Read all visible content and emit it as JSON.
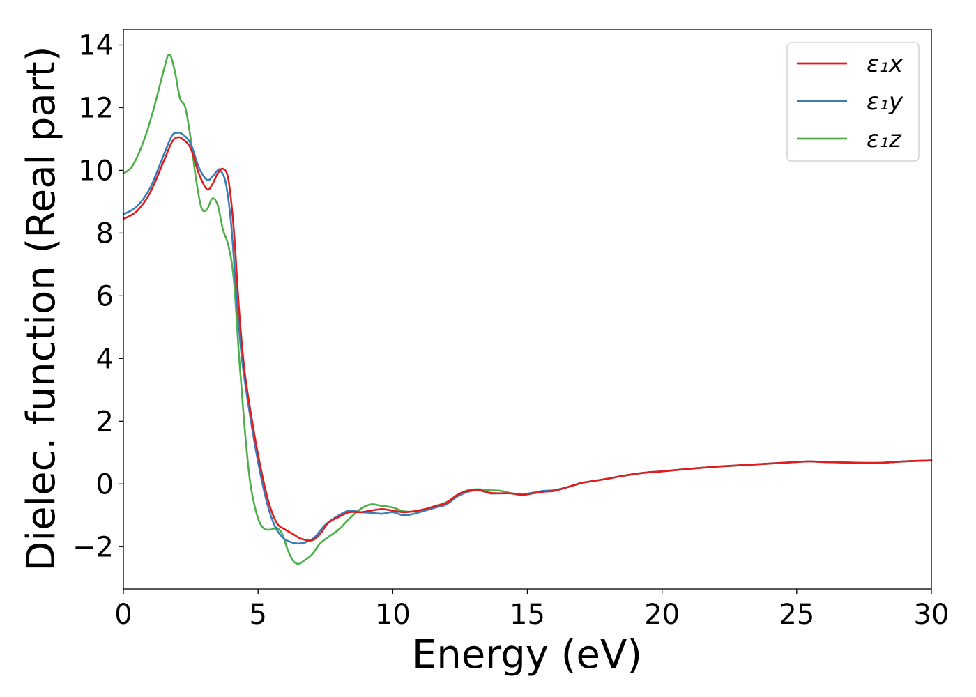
{
  "chart_data": {
    "type": "line",
    "title": "",
    "xlabel": "Energy (eV)",
    "ylabel": "Dielec. function (Real part)",
    "xlim": [
      0,
      30
    ],
    "ylim": [
      -3.35,
      14.5
    ],
    "xticks": [
      0,
      5,
      10,
      15,
      20,
      25,
      30
    ],
    "xtick_labels": [
      "0",
      "5",
      "10",
      "15",
      "20",
      "25",
      "30"
    ],
    "yticks": [
      -2,
      0,
      2,
      4,
      6,
      8,
      10,
      12,
      14
    ],
    "ytick_labels": [
      "−2",
      "0",
      "2",
      "4",
      "6",
      "8",
      "10",
      "12",
      "14"
    ],
    "grid": false,
    "legend_position": "top-right",
    "series": [
      {
        "name": "ε₁x",
        "color": "#e41a1c",
        "x": [
          0,
          0.5,
          1.0,
          1.5,
          1.8,
          2.0,
          2.2,
          2.5,
          2.8,
          3.1,
          3.3,
          3.5,
          3.7,
          3.9,
          4.1,
          4.3,
          4.5,
          4.8,
          5.1,
          5.4,
          5.7,
          6.0,
          6.3,
          6.6,
          7.0,
          7.3,
          7.6,
          8.0,
          8.4,
          8.8,
          9.2,
          9.6,
          10.0,
          10.4,
          10.8,
          11.2,
          11.6,
          12.0,
          12.4,
          12.8,
          13.2,
          13.6,
          14.0,
          14.4,
          14.8,
          15.2,
          15.6,
          16.0,
          16.5,
          17.0,
          17.5,
          18.0,
          18.5,
          19.0,
          19.5,
          20.0,
          21.0,
          22.0,
          23.0,
          24.0,
          25.0,
          25.5,
          26.0,
          27.0,
          28.0,
          29.0,
          30.0
        ],
        "values": [
          8.45,
          8.7,
          9.3,
          10.3,
          10.9,
          11.05,
          11.0,
          10.7,
          9.9,
          9.4,
          9.55,
          9.9,
          10.05,
          9.7,
          8.1,
          5.5,
          3.6,
          1.9,
          0.5,
          -0.6,
          -1.25,
          -1.45,
          -1.6,
          -1.75,
          -1.8,
          -1.6,
          -1.25,
          -1.05,
          -0.9,
          -0.9,
          -0.85,
          -0.8,
          -0.85,
          -0.9,
          -0.87,
          -0.8,
          -0.7,
          -0.6,
          -0.35,
          -0.22,
          -0.2,
          -0.28,
          -0.3,
          -0.3,
          -0.35,
          -0.3,
          -0.25,
          -0.22,
          -0.1,
          0.03,
          0.1,
          0.17,
          0.25,
          0.32,
          0.37,
          0.4,
          0.48,
          0.55,
          0.6,
          0.65,
          0.7,
          0.72,
          0.7,
          0.68,
          0.67,
          0.72,
          0.75
        ]
      },
      {
        "name": "ε₁y",
        "color": "#377eb8",
        "x": [
          0,
          0.5,
          1.0,
          1.5,
          1.8,
          2.0,
          2.2,
          2.5,
          2.8,
          3.1,
          3.3,
          3.5,
          3.6,
          3.8,
          4.0,
          4.2,
          4.4,
          4.7,
          5.0,
          5.3,
          5.6,
          5.9,
          6.2,
          6.5,
          6.8,
          7.1,
          7.5,
          8.0,
          8.4,
          8.8,
          9.2,
          9.6,
          10.0,
          10.4,
          10.8,
          11.2,
          11.6,
          12.0,
          12.4,
          12.8,
          13.2,
          13.6,
          14.0,
          14.4,
          14.8,
          15.2,
          15.6,
          16.0,
          16.5,
          17.0,
          17.5,
          18.0,
          18.5,
          19.0,
          19.5,
          20.0,
          21.0,
          22.0,
          23.0,
          24.0,
          25.0,
          25.5,
          26.0,
          27.0,
          28.0,
          29.0,
          30.0
        ],
        "values": [
          8.6,
          8.85,
          9.45,
          10.5,
          11.1,
          11.2,
          11.15,
          10.85,
          10.1,
          9.7,
          9.8,
          10.0,
          10.0,
          9.6,
          8.3,
          6.0,
          4.0,
          2.2,
          0.7,
          -0.5,
          -1.3,
          -1.7,
          -1.85,
          -1.9,
          -1.85,
          -1.7,
          -1.3,
          -1.0,
          -0.85,
          -0.9,
          -0.92,
          -0.95,
          -0.9,
          -1.0,
          -0.95,
          -0.85,
          -0.75,
          -0.65,
          -0.4,
          -0.25,
          -0.2,
          -0.3,
          -0.3,
          -0.3,
          -0.33,
          -0.28,
          -0.22,
          -0.2,
          -0.1,
          0.03,
          0.1,
          0.17,
          0.25,
          0.32,
          0.37,
          0.4,
          0.48,
          0.55,
          0.6,
          0.65,
          0.7,
          0.72,
          0.7,
          0.68,
          0.67,
          0.72,
          0.75
        ]
      },
      {
        "name": "ε₁z",
        "color": "#4daf4a",
        "x": [
          0,
          0.3,
          0.6,
          0.9,
          1.2,
          1.5,
          1.7,
          1.9,
          2.1,
          2.3,
          2.5,
          2.7,
          2.9,
          3.1,
          3.3,
          3.5,
          3.7,
          3.9,
          4.1,
          4.3,
          4.5,
          4.7,
          4.9,
          5.1,
          5.3,
          5.5,
          5.7,
          5.9,
          6.1,
          6.3,
          6.5,
          6.7,
          7.0,
          7.3,
          7.6,
          8.0,
          8.4,
          8.8,
          9.2,
          9.6,
          10.0,
          10.4,
          10.8,
          11.2,
          11.6,
          12.0,
          12.4,
          12.8,
          13.2,
          13.6,
          14.0,
          14.4,
          14.8,
          15.2,
          15.6,
          16.0,
          16.5,
          17.0,
          17.5,
          18.0,
          18.5,
          19.0,
          19.5,
          20.0,
          21.0,
          22.0,
          23.0,
          24.0,
          25.0,
          25.5,
          26.0,
          27.0,
          28.0,
          29.0,
          30.0
        ],
        "values": [
          9.9,
          10.1,
          10.6,
          11.3,
          12.2,
          13.2,
          13.7,
          13.2,
          12.3,
          12.0,
          11.0,
          9.7,
          8.8,
          8.75,
          9.1,
          8.9,
          8.1,
          7.6,
          6.5,
          4.0,
          1.8,
          0.1,
          -0.8,
          -1.3,
          -1.45,
          -1.45,
          -1.4,
          -1.6,
          -2.1,
          -2.45,
          -2.55,
          -2.45,
          -2.25,
          -1.9,
          -1.7,
          -1.45,
          -1.1,
          -0.8,
          -0.65,
          -0.7,
          -0.75,
          -0.87,
          -0.88,
          -0.82,
          -0.7,
          -0.58,
          -0.35,
          -0.2,
          -0.17,
          -0.2,
          -0.22,
          -0.3,
          -0.35,
          -0.3,
          -0.23,
          -0.2,
          -0.1,
          0.03,
          0.1,
          0.17,
          0.25,
          0.32,
          0.37,
          0.4,
          0.48,
          0.55,
          0.6,
          0.65,
          0.7,
          0.72,
          0.7,
          0.68,
          0.67,
          0.72,
          0.75
        ]
      }
    ]
  }
}
